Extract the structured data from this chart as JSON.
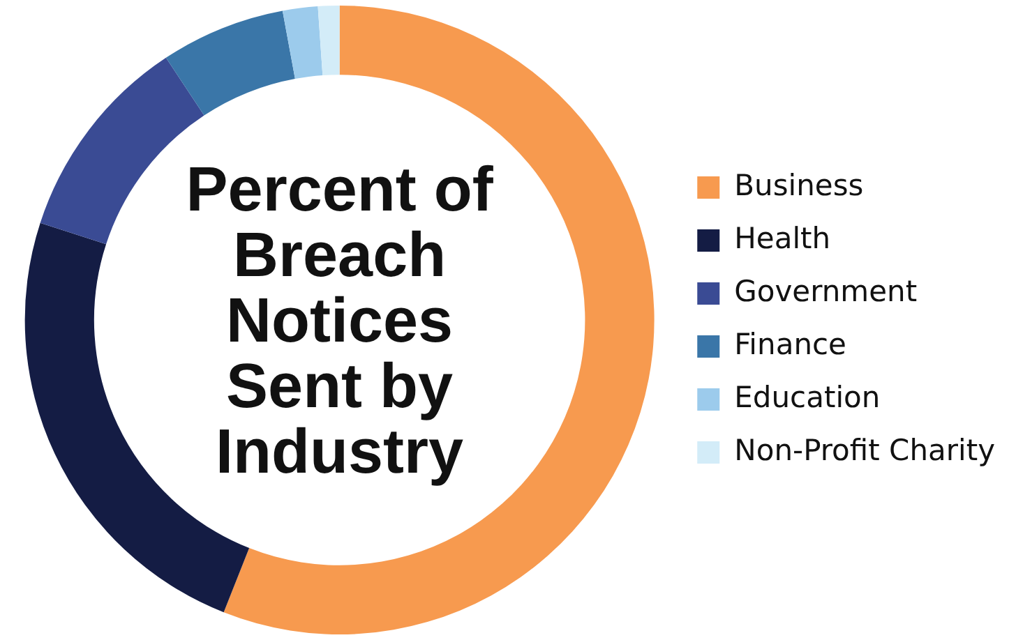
{
  "chart_data": {
    "type": "donut",
    "title": "Percent of Breach Notices Sent by Industry",
    "categories": [
      "Business",
      "Health",
      "Government",
      "Finance",
      "Education",
      "Non-Profit Charity"
    ],
    "values": [
      56,
      24,
      10.7,
      6.4,
      1.8,
      1.1
    ],
    "colors": [
      "#f79a4f",
      "#141c44",
      "#3a4b94",
      "#3a76a8",
      "#9ccbec",
      "#d3ecf8"
    ],
    "legend": "right"
  }
}
